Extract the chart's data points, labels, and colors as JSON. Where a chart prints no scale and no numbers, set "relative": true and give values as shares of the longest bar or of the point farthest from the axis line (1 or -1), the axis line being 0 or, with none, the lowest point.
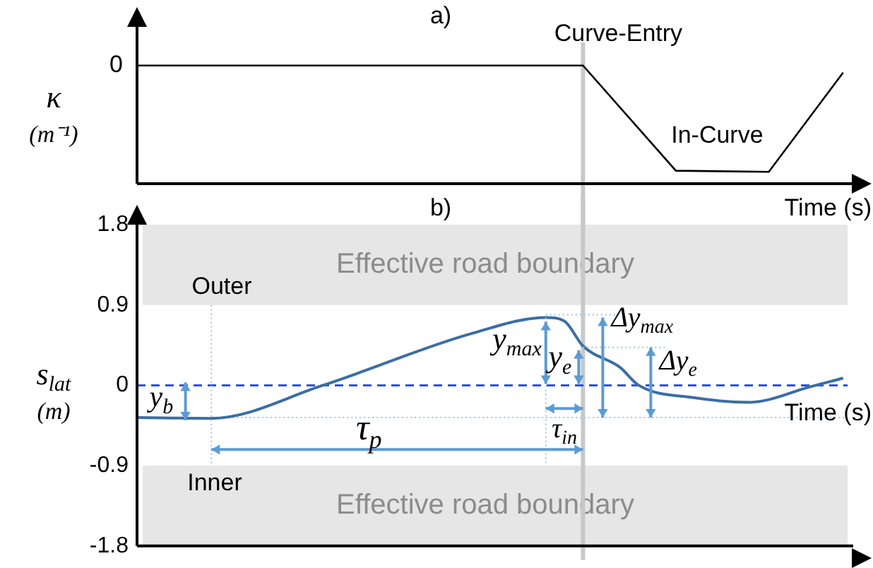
{
  "chart_data": [
    {
      "type": "line",
      "title": "a)",
      "xlabel": "Time (s)",
      "ylabel": "κ (m⁻¹)",
      "relative": true,
      "grid": false,
      "legend": false,
      "marker": "none",
      "categories": [
        null,
        null,
        null,
        null,
        null,
        null,
        null,
        null,
        null,
        null,
        null,
        null,
        null,
        null,
        null,
        null,
        null,
        null,
        null,
        null,
        null,
        null,
        null,
        null,
        null,
        null,
        null,
        null,
        null,
        null,
        null,
        null,
        null,
        null,
        null,
        null,
        null,
        null,
        null,
        null
      ],
      "series": [
        {
          "color": "#000000",
          "values": [
            1,
            null,
            null,
            null,
            null,
            null,
            null,
            null,
            null,
            null,
            null,
            null,
            null,
            null,
            null,
            null,
            null,
            null,
            null,
            null,
            null,
            null,
            null,
            null,
            1,
            null,
            null,
            null,
            null,
            0.11,
            null,
            null,
            null,
            null,
            0.1,
            null,
            null,
            null,
            0.94,
            null
          ]
        }
      ],
      "annotations": [
        "0",
        "Curve-Entry",
        "In-Curve"
      ]
    },
    {
      "type": "line",
      "title": "b)",
      "xlabel": "Time (s)",
      "ylabel": "s$_{lat}$ (m)",
      "grid": false,
      "legend": false,
      "marker": "none",
      "categories": [
        null,
        null,
        null,
        null,
        null,
        null,
        null,
        null,
        null,
        null,
        null,
        null,
        null,
        null,
        null,
        null,
        null,
        null,
        null,
        null,
        null,
        null,
        null,
        null,
        null,
        null,
        null,
        null,
        null,
        null,
        null,
        null,
        null,
        null,
        null,
        null,
        null,
        null,
        null,
        null
      ],
      "ylim": [
        -1.8,
        1.8
      ],
      "yticks": [
        -1.8,
        -0.9,
        0,
        0.9,
        1.8
      ],
      "series": [
        {
          "color": "#3a6ea5",
          "values": [
            -0.36,
            null,
            null,
            null,
            -0.37,
            null,
            null,
            null,
            null,
            null,
            0,
            null,
            null,
            null,
            null,
            null,
            null,
            null,
            0.58,
            null,
            null,
            null,
            0.76,
            0.72,
            0.44,
            null,
            0.2,
            0,
            null,
            null,
            -0.14,
            null,
            null,
            -0.19,
            -0.16,
            null,
            -0.03,
            null,
            0.08,
            null
          ]
        }
      ],
      "ref_lines": [
        {
          "axis": "y",
          "value": 0,
          "color": "#2a52e0",
          "line_style": "dashed"
        },
        {
          "axis": "y",
          "value": -0.36,
          "color": "#9dc3e6",
          "line_style": "dotted"
        }
      ],
      "bands": [
        {
          "axis": "y",
          "from": 0.9,
          "to": 1.8,
          "label": "Effective road boundary",
          "color": "#e6e6e6"
        },
        {
          "axis": "y",
          "from": -1.8,
          "to": -0.9,
          "label": "Effective road boundary",
          "color": "#e6e6e6"
        }
      ],
      "annotations": [
        "Outer",
        "Inner",
        "y$_{b}$",
        "y$_{max}$",
        "y$_{e}$",
        "Δy$_{max}$",
        "Δy$_{e}$",
        "τ$_{p}$",
        "τ$_{in}$"
      ]
    }
  ]
}
